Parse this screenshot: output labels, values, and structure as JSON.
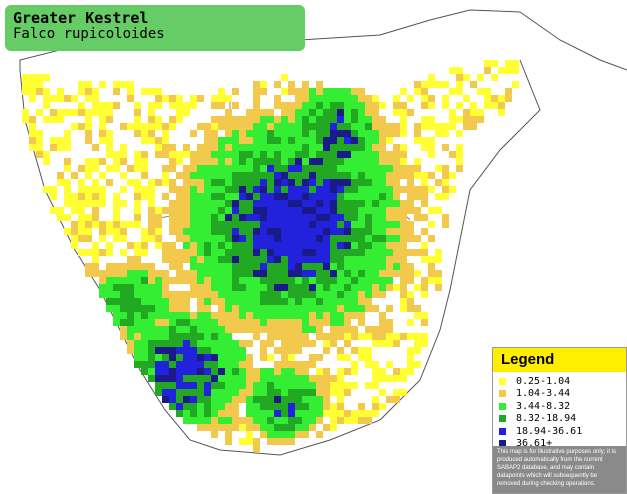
{
  "header": {
    "title": "Greater Kestrel",
    "subtitle": "Falco rupicoloides"
  },
  "legend": {
    "title": "Legend",
    "items": [
      {
        "label": "0.25-1.04",
        "color": "#ffff33"
      },
      {
        "label": "1.04-3.44",
        "color": "#f2c94c"
      },
      {
        "label": "3.44-8.32",
        "color": "#33ee33"
      },
      {
        "label": "8.32-18.94",
        "color": "#22a822"
      },
      {
        "label": "18.94-36.61",
        "color": "#2222dd"
      },
      {
        "label": "36.61+",
        "color": "#1a1a88"
      }
    ],
    "note": "This map is for illustrative purposes only; it is produced automatically from the current SABAP2 database, and may contain datapoints which will subsequently be removed during checking operations."
  }
}
